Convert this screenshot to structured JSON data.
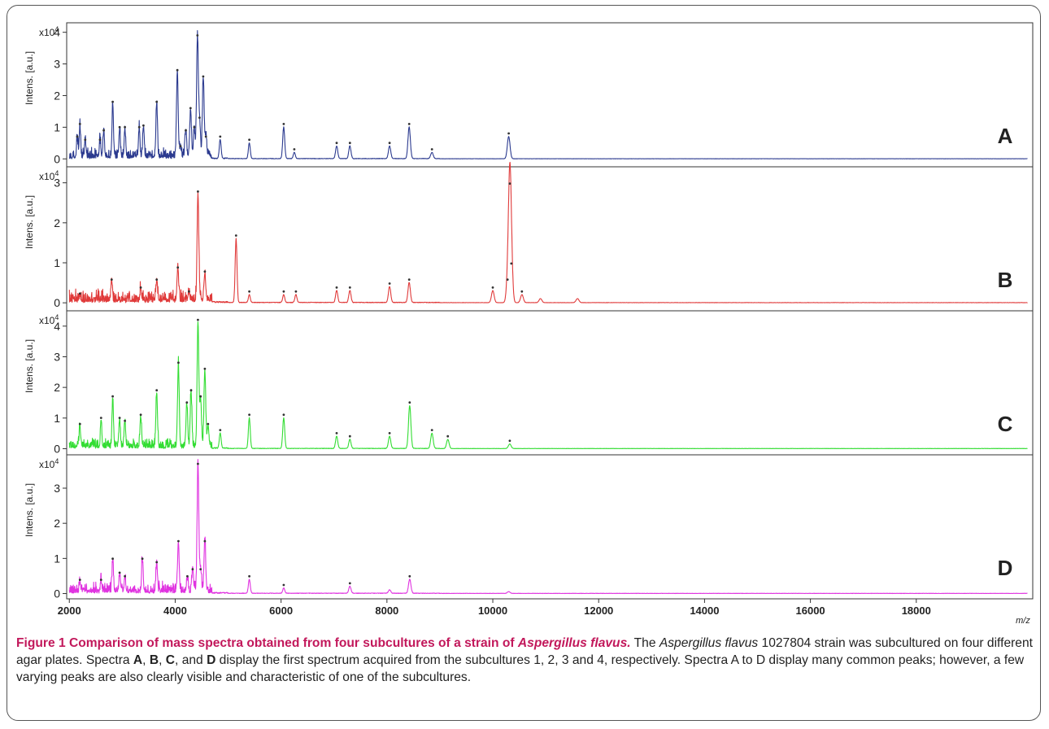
{
  "caption": {
    "title_prefix": "Figure 1 Comparison of mass spectra obtained from four subcultures of a strain of ",
    "title_species": "Aspergillus flavus.",
    "text_1": " The ",
    "species": "Aspergillus flavus",
    "text_2": " 1027804 strain was subcultured on four different agar plates. Spectra ",
    "label_a": "A",
    "sep_1": ", ",
    "label_b": "B",
    "sep_2": ", ",
    "label_c": "C",
    "sep_3": ", and ",
    "label_d": "D",
    "text_3": " display the first spectrum acquired from the subcultures 1, 2, 3 and 4, respectively. Spectra A to D display many common peaks; however, a few varying peaks are also clearly visible and characteristic of one of the subcultures."
  },
  "chart_data": {
    "type": "line",
    "x_label": "m/z",
    "y_label": "Intens. [a.u.]",
    "y_multiplier": "x10",
    "y_exponent": "4",
    "xlim": [
      1950,
      20200
    ],
    "x_ticks": [
      2000,
      4000,
      6000,
      8000,
      10000,
      12000,
      14000,
      16000,
      18000
    ],
    "x_tick_labels": [
      "2000",
      "4000",
      "6000",
      "8000",
      "10000",
      "12000",
      "14000",
      "16000",
      "18000"
    ],
    "grid": false,
    "baseline_noise_x10e4": 0.04,
    "panels": [
      {
        "label": "A",
        "color": "#2b3a8f",
        "ylim": [
          -0.25,
          4.3
        ],
        "y_ticks": [
          0,
          1,
          2,
          3,
          4
        ],
        "peaks": [
          [
            2150,
            0.6
          ],
          [
            2200,
            1.0
          ],
          [
            2300,
            0.5
          ],
          [
            2580,
            0.5
          ],
          [
            2650,
            0.8
          ],
          [
            2820,
            1.7
          ],
          [
            2950,
            0.9
          ],
          [
            3050,
            0.9
          ],
          [
            3320,
            0.9
          ],
          [
            3400,
            0.95
          ],
          [
            3650,
            1.7
          ],
          [
            4040,
            2.7
          ],
          [
            4100,
            0.3
          ],
          [
            4200,
            0.8
          ],
          [
            4290,
            1.5
          ],
          [
            4360,
            0.9
          ],
          [
            4420,
            3.8
          ],
          [
            4460,
            1.2
          ],
          [
            4530,
            2.5
          ],
          [
            4580,
            0.6
          ],
          [
            4850,
            0.6
          ],
          [
            5400,
            0.5
          ],
          [
            6050,
            1.0
          ],
          [
            6250,
            0.2
          ],
          [
            7050,
            0.4
          ],
          [
            7300,
            0.4
          ],
          [
            8050,
            0.4
          ],
          [
            8420,
            1.0
          ],
          [
            8850,
            0.2
          ],
          [
            10300,
            0.7
          ]
        ]
      },
      {
        "label": "B",
        "color": "#e03a3a",
        "ylim": [
          -0.2,
          3.4
        ],
        "y_ticks": [
          0,
          1,
          2,
          3
        ],
        "peaks": [
          [
            2200,
            0.15
          ],
          [
            2800,
            0.5
          ],
          [
            3350,
            0.3
          ],
          [
            3650,
            0.5
          ],
          [
            4050,
            0.8
          ],
          [
            4260,
            0.2
          ],
          [
            4430,
            2.7
          ],
          [
            4560,
            0.7
          ],
          [
            5150,
            1.6
          ],
          [
            5400,
            0.2
          ],
          [
            6050,
            0.2
          ],
          [
            6280,
            0.2
          ],
          [
            7050,
            0.3
          ],
          [
            7300,
            0.3
          ],
          [
            8050,
            0.4
          ],
          [
            8420,
            0.5
          ],
          [
            10000,
            0.3
          ],
          [
            10280,
            0.5
          ],
          [
            10320,
            2.9
          ],
          [
            10350,
            0.9
          ],
          [
            10550,
            0.2
          ],
          [
            10900,
            0.1
          ],
          [
            11600,
            0.1
          ]
        ]
      },
      {
        "label": "C",
        "color": "#33dd33",
        "ylim": [
          -0.2,
          4.5
        ],
        "y_ticks": [
          0,
          1,
          2,
          3,
          4
        ],
        "peaks": [
          [
            2200,
            0.7
          ],
          [
            2600,
            0.9
          ],
          [
            2820,
            1.6
          ],
          [
            2950,
            0.9
          ],
          [
            3050,
            0.8
          ],
          [
            3350,
            1.0
          ],
          [
            3650,
            1.8
          ],
          [
            4060,
            2.7
          ],
          [
            4220,
            1.4
          ],
          [
            4300,
            1.8
          ],
          [
            4430,
            4.1
          ],
          [
            4480,
            1.6
          ],
          [
            4560,
            2.5
          ],
          [
            4620,
            0.7
          ],
          [
            4850,
            0.5
          ],
          [
            5400,
            1.0
          ],
          [
            6050,
            1.0
          ],
          [
            7050,
            0.4
          ],
          [
            7300,
            0.3
          ],
          [
            8050,
            0.4
          ],
          [
            8430,
            1.4
          ],
          [
            8850,
            0.5
          ],
          [
            9150,
            0.3
          ],
          [
            10320,
            0.15
          ]
        ]
      },
      {
        "label": "D",
        "color": "#e033e0",
        "ylim": [
          -0.15,
          3.95
        ],
        "y_ticks": [
          0,
          1,
          2,
          3
        ],
        "peaks": [
          [
            2200,
            0.3
          ],
          [
            2600,
            0.3
          ],
          [
            2820,
            0.9
          ],
          [
            2950,
            0.5
          ],
          [
            3050,
            0.4
          ],
          [
            3380,
            0.9
          ],
          [
            3650,
            0.8
          ],
          [
            4060,
            1.4
          ],
          [
            4230,
            0.4
          ],
          [
            4330,
            0.6
          ],
          [
            4430,
            3.6
          ],
          [
            4480,
            0.6
          ],
          [
            4560,
            1.4
          ],
          [
            5400,
            0.4
          ],
          [
            6050,
            0.15
          ],
          [
            7300,
            0.2
          ],
          [
            8050,
            0.1
          ],
          [
            8430,
            0.4
          ],
          [
            10300,
            0.05
          ]
        ]
      }
    ]
  }
}
